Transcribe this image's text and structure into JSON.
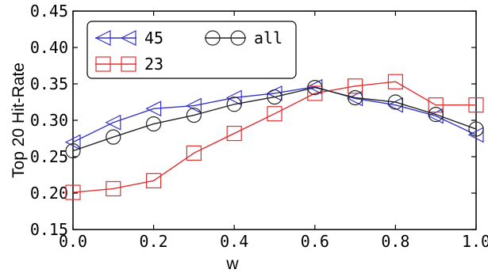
{
  "chart_data": {
    "type": "line",
    "xlabel": "w",
    "ylabel": "Top 20 Hit-Rate",
    "xlim": [
      0.0,
      1.0
    ],
    "ylim": [
      0.15,
      0.45
    ],
    "xticks": [
      "0.0",
      "0.2",
      "0.4",
      "0.6",
      "0.8",
      "1.0"
    ],
    "yticks": [
      "0.15",
      "0.20",
      "0.25",
      "0.30",
      "0.35",
      "0.40",
      "0.45"
    ],
    "grid": false,
    "legend_position": "top-left",
    "x": [
      0.0,
      0.1,
      0.2,
      0.3,
      0.4,
      0.5,
      0.6,
      0.7,
      0.8,
      0.9,
      1.0
    ],
    "series": [
      {
        "name": "45",
        "color": "#3333cc",
        "marker": "triangle-left",
        "values": [
          0.27,
          0.297,
          0.316,
          0.32,
          0.331,
          0.337,
          0.346,
          0.33,
          0.321,
          0.306,
          0.28
        ]
      },
      {
        "name": "23",
        "color": "#e03030",
        "marker": "square",
        "values": [
          0.201,
          0.206,
          0.217,
          0.255,
          0.282,
          0.309,
          0.337,
          0.347,
          0.353,
          0.321,
          0.321
        ]
      },
      {
        "name": "all",
        "color": "#222222",
        "marker": "circle",
        "values": [
          0.258,
          0.277,
          0.295,
          0.307,
          0.322,
          0.332,
          0.345,
          0.331,
          0.325,
          0.308,
          0.288
        ]
      }
    ]
  }
}
